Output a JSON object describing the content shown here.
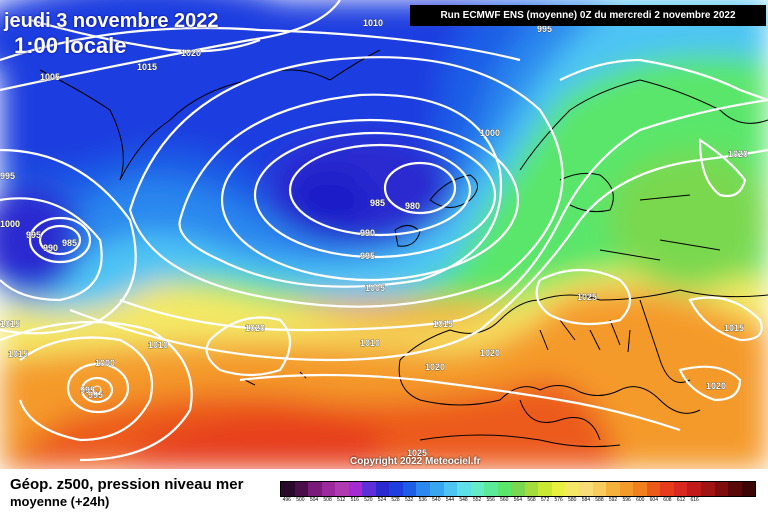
{
  "header": {
    "date": "jeudi 3 novembre 2022",
    "time": "1:00 locale",
    "run": "Run ECMWF ENS (moyenne) 0Z du mercredi 2 novembre 2022"
  },
  "footer": {
    "title": "Géop. z500, pression niveau mer",
    "subtitle": "moyenne   (+24h)",
    "copyright": "Copyright 2022 Meteociel.fr"
  },
  "legend": {
    "colors": [
      "#2a0a2a",
      "#4a0f4a",
      "#7a1a7a",
      "#9d2a9d",
      "#b03ab0",
      "#a52ad2",
      "#5e2fd8",
      "#2a2ad0",
      "#1e3ee0",
      "#1e5ee6",
      "#2a88ee",
      "#3aa6f2",
      "#4ec4f4",
      "#5ee0e8",
      "#64ecc8",
      "#5aea9a",
      "#5ae66a",
      "#7ad850",
      "#a4dc3c",
      "#c8e832",
      "#e8f040",
      "#f4e866",
      "#f8dc78",
      "#f8cc5c",
      "#f4b23c",
      "#f49a2a",
      "#f0801e",
      "#ec5a1a",
      "#e63c1c",
      "#d82820",
      "#c01a1a",
      "#a01414",
      "#7e0e0e",
      "#5a0808",
      "#3c0606"
    ],
    "ticks": [
      "496",
      "500",
      "504",
      "508",
      "512",
      "516",
      "520",
      "524",
      "528",
      "532",
      "536",
      "540",
      "544",
      "548",
      "552",
      "556",
      "560",
      "564",
      "568",
      "572",
      "576",
      "580",
      "584",
      "588",
      "592",
      "596",
      "600",
      "604",
      "608",
      "612",
      "616",
      "",
      "",
      "",
      ""
    ]
  },
  "isobar_labels": [
    "1010",
    "995",
    "1020",
    "1015",
    "1005",
    "995",
    "1000",
    "985",
    "980",
    "1000",
    "1020",
    "995",
    "1000",
    "990",
    "985",
    "990",
    "995",
    "1005",
    "1025",
    "1015",
    "1015",
    "1020",
    "1015",
    "1010",
    "1010",
    "1020",
    "1020",
    "1000",
    "995",
    "995",
    "1020",
    "1025",
    "1015"
  ],
  "colors": {
    "deep_low": "#1a1ec8",
    "mid_blue": "#2a88ee",
    "cyan": "#4ec4f4",
    "green": "#5ae66a",
    "yellow": "#f4e866",
    "orange": "#f49a2a",
    "red": "#e63c1c",
    "isobar": "#ffffff",
    "coast": "#000000"
  }
}
